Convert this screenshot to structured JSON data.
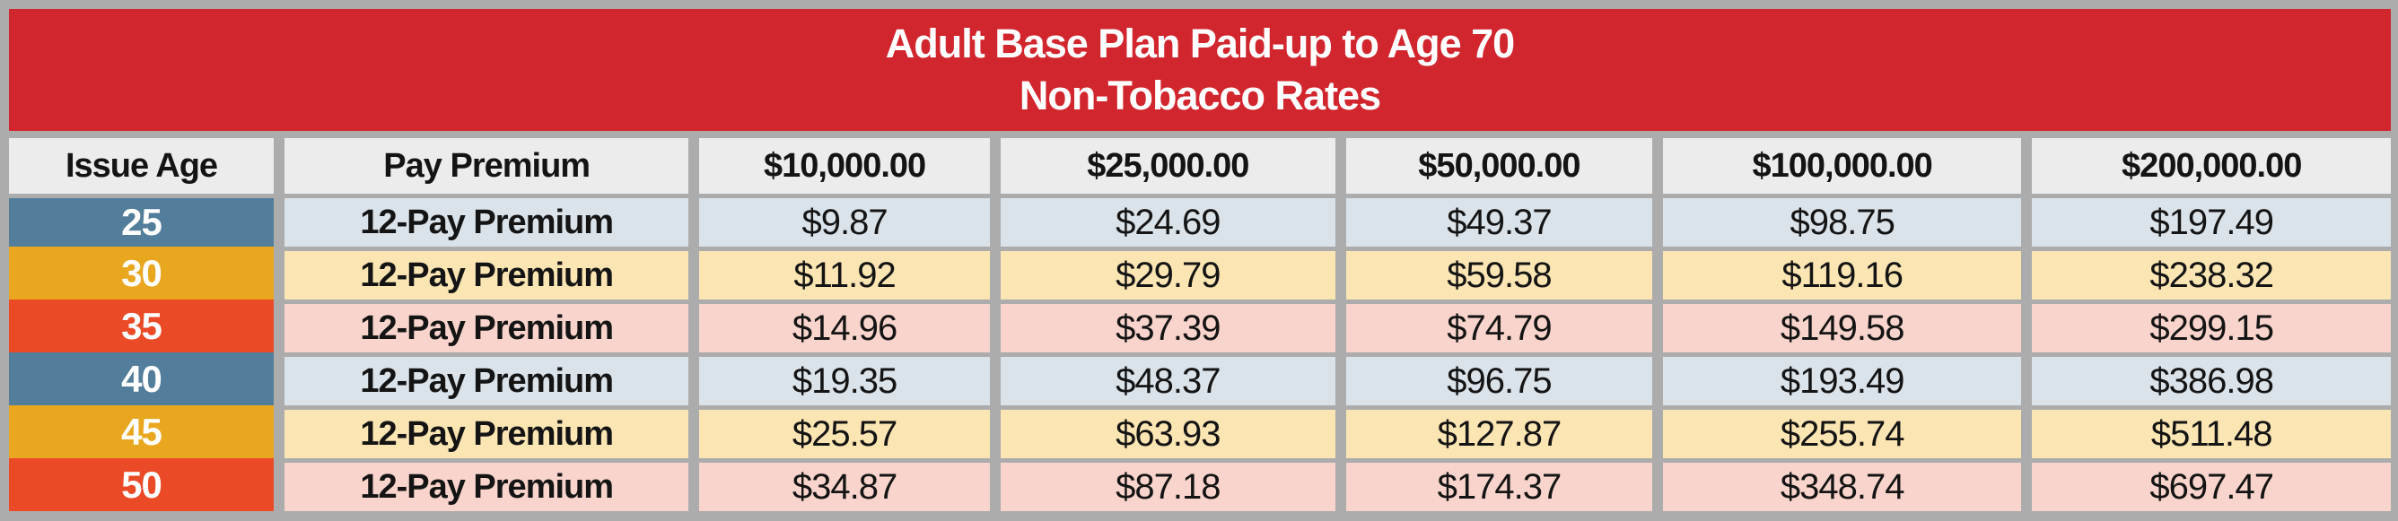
{
  "title": {
    "line1": "Adult Base Plan Paid-up to Age 70",
    "line2": "Non-Tobacco Rates"
  },
  "table": {
    "columns": [
      "Issue Age",
      "Pay Premium",
      "$10,000.00",
      "$25,000.00",
      "$50,000.00",
      "$100,000.00",
      "$200,000.00"
    ],
    "rows": [
      {
        "age": "25",
        "pay": "12-Pay Premium",
        "theme": "blue",
        "values": [
          "$9.87",
          "$24.69",
          "$49.37",
          "$98.75",
          "$197.49"
        ]
      },
      {
        "age": "30",
        "pay": "12-Pay Premium",
        "theme": "gold",
        "values": [
          "$11.92",
          "$29.79",
          "$59.58",
          "$119.16",
          "$238.32"
        ]
      },
      {
        "age": "35",
        "pay": "12-Pay Premium",
        "theme": "red",
        "values": [
          "$14.96",
          "$37.39",
          "$74.79",
          "$149.58",
          "$299.15"
        ]
      },
      {
        "age": "40",
        "pay": "12-Pay Premium",
        "theme": "blue",
        "values": [
          "$19.35",
          "$48.37",
          "$96.75",
          "$193.49",
          "$386.98"
        ]
      },
      {
        "age": "45",
        "pay": "12-Pay Premium",
        "theme": "gold",
        "values": [
          "$25.57",
          "$63.93",
          "$127.87",
          "$255.74",
          "$511.48"
        ]
      },
      {
        "age": "50",
        "pay": "12-Pay Premium",
        "theme": "red",
        "values": [
          "$34.87",
          "$87.18",
          "$174.37",
          "$348.74",
          "$697.47"
        ]
      }
    ]
  },
  "colors": {
    "band-red": "#D2262E",
    "frame-gray": "#ACACAC",
    "header-bg": "#ECECEC",
    "age-blue": "#527E9B",
    "age-gold": "#E8A71F",
    "age-red": "#EB4A26",
    "row-blue": "#DBE3EA",
    "row-gold": "#FBE5B3",
    "row-red": "#F8D4CC",
    "text-dark": "#141414",
    "text-white": "#FFFFFF"
  }
}
